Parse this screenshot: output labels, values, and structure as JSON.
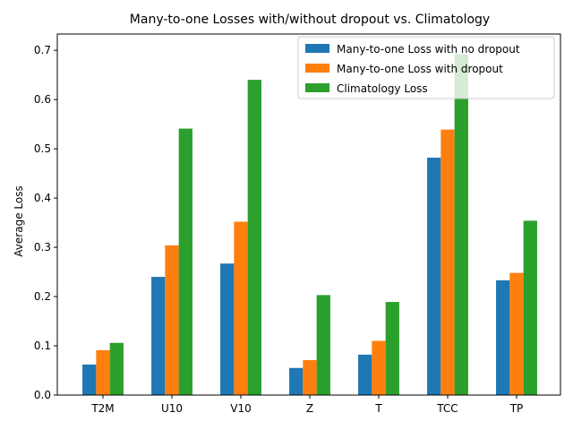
{
  "chart_data": {
    "type": "bar",
    "title": "Many-to-one Losses with/without dropout vs. Climatology",
    "xlabel": "",
    "ylabel": "Average Loss",
    "categories": [
      "T2M",
      "U10",
      "V10",
      "Z",
      "T",
      "TCC",
      "TP"
    ],
    "ylim": [
      0,
      0.733
    ],
    "yticks": [
      0.0,
      0.1,
      0.2,
      0.3,
      0.4,
      0.5,
      0.6,
      0.7
    ],
    "ytick_labels": [
      "0.0",
      "0.1",
      "0.2",
      "0.3",
      "0.4",
      "0.5",
      "0.6",
      "0.7"
    ],
    "grid": false,
    "legend_position": "top-right",
    "series": [
      {
        "name": "Many-to-one Loss with no dropout",
        "color": "#1f77b4",
        "values": [
          0.062,
          0.24,
          0.267,
          0.055,
          0.082,
          0.482,
          0.233
        ]
      },
      {
        "name": "Many-to-one Loss with dropout",
        "color": "#ff7f0e",
        "values": [
          0.091,
          0.304,
          0.352,
          0.071,
          0.11,
          0.539,
          0.248
        ]
      },
      {
        "name": "Climatology Loss",
        "color": "#2ca02c",
        "values": [
          0.106,
          0.541,
          0.64,
          0.203,
          0.189,
          0.692,
          0.354
        ]
      }
    ]
  }
}
